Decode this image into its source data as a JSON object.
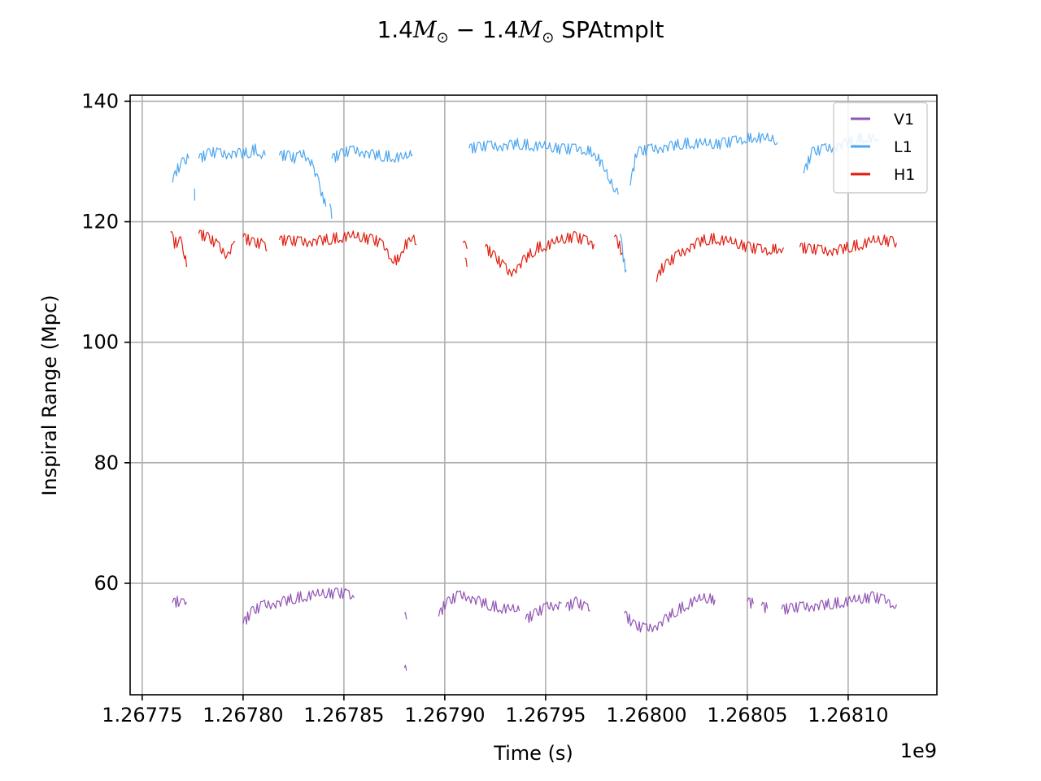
{
  "chart_data": {
    "type": "line",
    "title": "1.4M⊙ − 1.4M⊙ SPAtmplt",
    "title_parts": {
      "mass_a": "1.4",
      "symbol_a": "M",
      "sub_a": "⊙",
      "minus": " − ",
      "mass_b": "1.4",
      "symbol_b": "M",
      "sub_b": "⊙",
      "suffix": " SPAtmplt"
    },
    "xlabel": "Time (s)",
    "ylabel": "Inspiral Range (Mpc)",
    "x_offset_label": "1e9",
    "xlim": [
      1.267744,
      1.268144
    ],
    "ylim": [
      41.5,
      141
    ],
    "x_ticks": [
      1.26775,
      1.2678,
      1.26785,
      1.2679,
      1.26795,
      1.268,
      1.26805,
      1.2681
    ],
    "x_tick_labels": [
      "1.26775",
      "1.26780",
      "1.26785",
      "1.26790",
      "1.26795",
      "1.26800",
      "1.26805",
      "1.26810"
    ],
    "y_ticks": [
      60,
      80,
      100,
      120,
      140
    ],
    "y_tick_labels": [
      "60",
      "80",
      "100",
      "120",
      "140"
    ],
    "grid": true,
    "legend_position": "top-right",
    "series": [
      {
        "name": "V1",
        "color": "#9155b5",
        "segments": [
          [
            [
              1.267765,
              56.8
            ],
            [
              1.267768,
              57.0
            ],
            [
              1.26777,
              56.6
            ],
            [
              1.267772,
              56.9
            ]
          ],
          [
            [
              1.2678,
              53.3
            ],
            [
              1.267804,
              55.2
            ],
            [
              1.26781,
              56.3
            ],
            [
              1.267818,
              56.9
            ],
            [
              1.267826,
              57.6
            ],
            [
              1.267834,
              58.0
            ],
            [
              1.267842,
              58.3
            ],
            [
              1.26785,
              58.3
            ],
            [
              1.267855,
              57.6
            ]
          ],
          [
            [
              1.26788,
              46.0
            ],
            [
              1.267881,
              45.5
            ]
          ],
          [
            [
              1.26788,
              55.0
            ],
            [
              1.267881,
              54.0
            ]
          ],
          [
            [
              1.267897,
              54.5
            ],
            [
              1.2679,
              56.5
            ],
            [
              1.267906,
              57.8
            ],
            [
              1.26791,
              58.0
            ],
            [
              1.267916,
              57.2
            ],
            [
              1.267924,
              56.2
            ],
            [
              1.267932,
              55.7
            ],
            [
              1.267937,
              55.4
            ]
          ],
          [
            [
              1.26794,
              54.0
            ],
            [
              1.267946,
              55.2
            ],
            [
              1.267952,
              56.2
            ],
            [
              1.267958,
              56.7
            ]
          ],
          [
            [
              1.26796,
              56.0
            ],
            [
              1.267965,
              56.9
            ],
            [
              1.267972,
              55.5
            ]
          ],
          [
            [
              1.267989,
              55.0
            ],
            [
              1.267994,
              53.0
            ],
            [
              1.268,
              52.4
            ],
            [
              1.268006,
              53.2
            ],
            [
              1.268014,
              55.3
            ],
            [
              1.268022,
              56.8
            ],
            [
              1.268028,
              57.5
            ],
            [
              1.268034,
              57.3
            ]
          ],
          [
            [
              1.26805,
              57.0
            ],
            [
              1.268053,
              56.6
            ]
          ],
          [
            [
              1.268057,
              56.3
            ],
            [
              1.26806,
              55.8
            ]
          ],
          [
            [
              1.268067,
              55.7
            ],
            [
              1.268076,
              56.0
            ],
            [
              1.268086,
              56.4
            ],
            [
              1.268096,
              56.8
            ],
            [
              1.268106,
              57.3
            ],
            [
              1.268112,
              57.7
            ],
            [
              1.268118,
              57.2
            ],
            [
              1.268124,
              56.5
            ]
          ]
        ]
      },
      {
        "name": "L1",
        "color": "#4da6ef",
        "segments": [
          [
            [
              1.267765,
              126.5
            ],
            [
              1.267767,
              128.5
            ],
            [
              1.26777,
              129.8
            ],
            [
              1.267773,
              130.5
            ]
          ],
          [
            [
              1.267776,
              124.5
            ]
          ],
          [
            [
              1.267778,
              130.5
            ],
            [
              1.267784,
              131.5
            ],
            [
              1.26779,
              131.2
            ],
            [
              1.267796,
              131.5
            ],
            [
              1.267802,
              131.4
            ],
            [
              1.267806,
              132.0
            ],
            [
              1.267811,
              131.0
            ]
          ],
          [
            [
              1.267818,
              131.0
            ],
            [
              1.267822,
              131.0
            ],
            [
              1.267826,
              130.4
            ],
            [
              1.26783,
              131.3
            ],
            [
              1.267834,
              130.0
            ],
            [
              1.267838,
              126.0
            ],
            [
              1.26784,
              123.5
            ],
            [
              1.267841,
              122.5
            ]
          ],
          [
            [
              1.267843,
              123.0
            ],
            [
              1.267844,
              120.5
            ]
          ],
          [
            [
              1.267844,
              130.5
            ],
            [
              1.26785,
              131.5
            ],
            [
              1.267856,
              131.8
            ],
            [
              1.267862,
              131.4
            ],
            [
              1.267868,
              131.0
            ],
            [
              1.267874,
              130.8
            ],
            [
              1.26788,
              130.6
            ],
            [
              1.267884,
              131.2
            ]
          ],
          [
            [
              1.267912,
              132.2
            ],
            [
              1.26792,
              132.5
            ],
            [
              1.267928,
              132.6
            ],
            [
              1.267936,
              133.0
            ],
            [
              1.267944,
              132.6
            ],
            [
              1.267952,
              132.3
            ],
            [
              1.26796,
              132.0
            ],
            [
              1.267968,
              132.1
            ],
            [
              1.267974,
              131.5
            ],
            [
              1.267978,
              129.5
            ],
            [
              1.267982,
              126.5
            ],
            [
              1.267986,
              124.5
            ]
          ],
          [
            [
              1.267987,
              118.0
            ],
            [
              1.267988,
              115.5
            ],
            [
              1.267989,
              113.0
            ],
            [
              1.26799,
              112.0
            ]
          ],
          [
            [
              1.267992,
              126.0
            ],
            [
              1.267995,
              131.5
            ],
            [
              1.268002,
              132.0
            ],
            [
              1.26801,
              132.5
            ],
            [
              1.268018,
              133.0
            ],
            [
              1.268026,
              133.0
            ],
            [
              1.268034,
              132.8
            ],
            [
              1.268042,
              133.2
            ],
            [
              1.268048,
              133.8
            ],
            [
              1.268054,
              134.0
            ],
            [
              1.26806,
              133.8
            ],
            [
              1.268065,
              133.2
            ]
          ],
          [
            [
              1.268078,
              128.0
            ],
            [
              1.268082,
              131.5
            ],
            [
              1.26809,
              132.2
            ],
            [
              1.268098,
              133.0
            ],
            [
              1.268104,
              133.7
            ],
            [
              1.26811,
              134.0
            ],
            [
              1.268115,
              133.4
            ]
          ]
        ]
      },
      {
        "name": "H1",
        "color": "#e01e10",
        "segments": [
          [
            [
              1.267764,
              118.3
            ],
            [
              1.267766,
              116.5
            ],
            [
              1.267769,
              116.7
            ],
            [
              1.267771,
              114.5
            ],
            [
              1.267772,
              112.5
            ]
          ],
          [
            [
              1.267778,
              118.0
            ],
            [
              1.267782,
              117.5
            ],
            [
              1.267786,
              116.5
            ],
            [
              1.26779,
              115.0
            ],
            [
              1.267792,
              114.6
            ],
            [
              1.267796,
              116.8
            ]
          ],
          [
            [
              1.2678,
              117.5
            ],
            [
              1.267805,
              116.5
            ],
            [
              1.267809,
              116.3
            ],
            [
              1.267812,
              115.2
            ]
          ],
          [
            [
              1.267818,
              117.0
            ],
            [
              1.267824,
              116.8
            ],
            [
              1.26783,
              116.6
            ],
            [
              1.267836,
              116.9
            ],
            [
              1.267842,
              117.1
            ],
            [
              1.267848,
              117.4
            ],
            [
              1.267854,
              117.6
            ],
            [
              1.26786,
              117.3
            ],
            [
              1.267866,
              116.8
            ],
            [
              1.26787,
              115.8
            ],
            [
              1.267874,
              114.0
            ],
            [
              1.267876,
              113.4
            ],
            [
              1.26788,
              116.0
            ],
            [
              1.267884,
              117.2
            ],
            [
              1.267886,
              116.2
            ]
          ],
          [
            [
              1.267909,
              116.5
            ],
            [
              1.267911,
              115.5
            ]
          ],
          [
            [
              1.26791,
              114.0
            ],
            [
              1.267911,
              112.5
            ]
          ],
          [
            [
              1.26792,
              115.8
            ],
            [
              1.267924,
              114.5
            ],
            [
              1.267928,
              113.0
            ],
            [
              1.267932,
              111.5
            ],
            [
              1.267936,
              112.5
            ],
            [
              1.26794,
              114.0
            ],
            [
              1.267946,
              115.7
            ],
            [
              1.267952,
              116.2
            ],
            [
              1.267958,
              117.0
            ],
            [
              1.267964,
              117.5
            ],
            [
              1.26797,
              116.8
            ],
            [
              1.267974,
              116.3
            ]
          ],
          [
            [
              1.267984,
              117.5
            ],
            [
              1.267986,
              116.5
            ],
            [
              1.267988,
              114.8
            ]
          ],
          [
            [
              1.268005,
              110.0
            ],
            [
              1.268007,
              112.0
            ],
            [
              1.268012,
              113.5
            ],
            [
              1.268016,
              114.5
            ],
            [
              1.268022,
              116.0
            ],
            [
              1.268028,
              117.0
            ],
            [
              1.268034,
              117.2
            ],
            [
              1.26804,
              116.8
            ],
            [
              1.268046,
              116.2
            ],
            [
              1.268052,
              115.6
            ],
            [
              1.268058,
              115.3
            ],
            [
              1.268064,
              115.5
            ],
            [
              1.268068,
              115.7
            ]
          ],
          [
            [
              1.268076,
              115.8
            ],
            [
              1.268082,
              115.4
            ],
            [
              1.268088,
              115.2
            ],
            [
              1.268094,
              115.3
            ],
            [
              1.2681,
              115.8
            ],
            [
              1.268106,
              116.2
            ],
            [
              1.268112,
              116.8
            ],
            [
              1.268118,
              116.9
            ],
            [
              1.268124,
              116.5
            ]
          ]
        ]
      }
    ]
  }
}
